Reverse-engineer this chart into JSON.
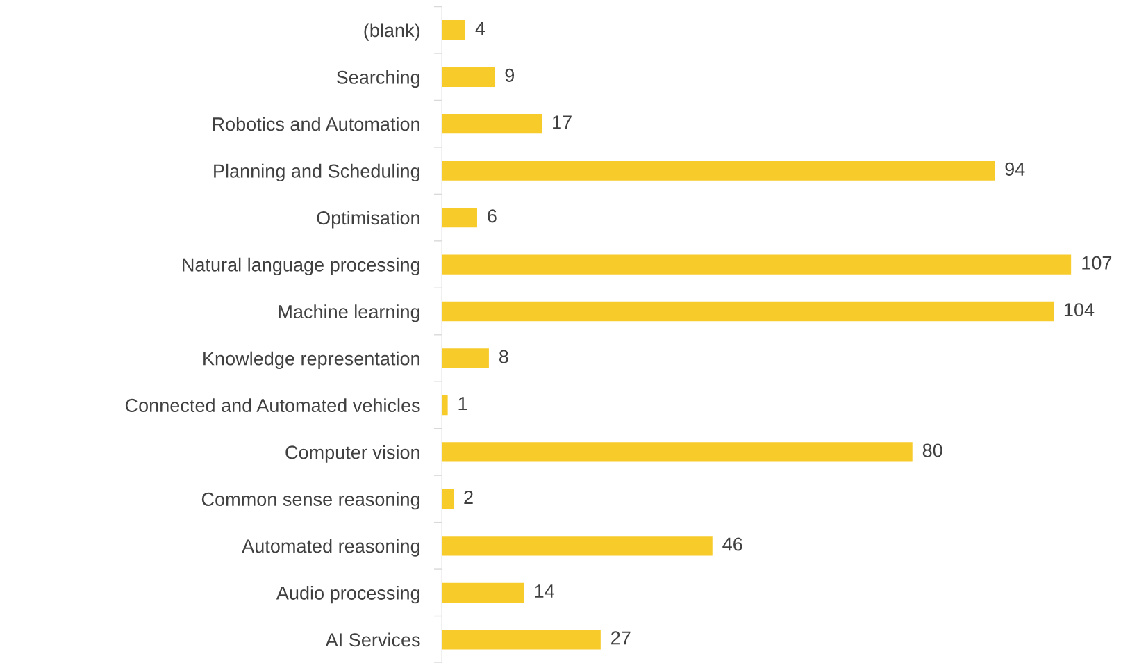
{
  "chart_data": {
    "type": "bar",
    "orientation": "horizontal",
    "categories": [
      "(blank)",
      "Searching",
      "Robotics and Automation",
      "Planning and Scheduling",
      "Optimisation",
      "Natural language processing",
      "Machine learning",
      "Knowledge representation",
      "Connected and Automated vehicles",
      "Computer vision",
      "Common sense reasoning",
      "Automated reasoning",
      "Audio processing",
      "AI Services"
    ],
    "values": [
      4,
      9,
      17,
      94,
      6,
      107,
      104,
      8,
      1,
      80,
      2,
      46,
      14,
      27
    ],
    "color": "#f7cb2a",
    "data_labels": true,
    "grid": false,
    "legend": false
  }
}
